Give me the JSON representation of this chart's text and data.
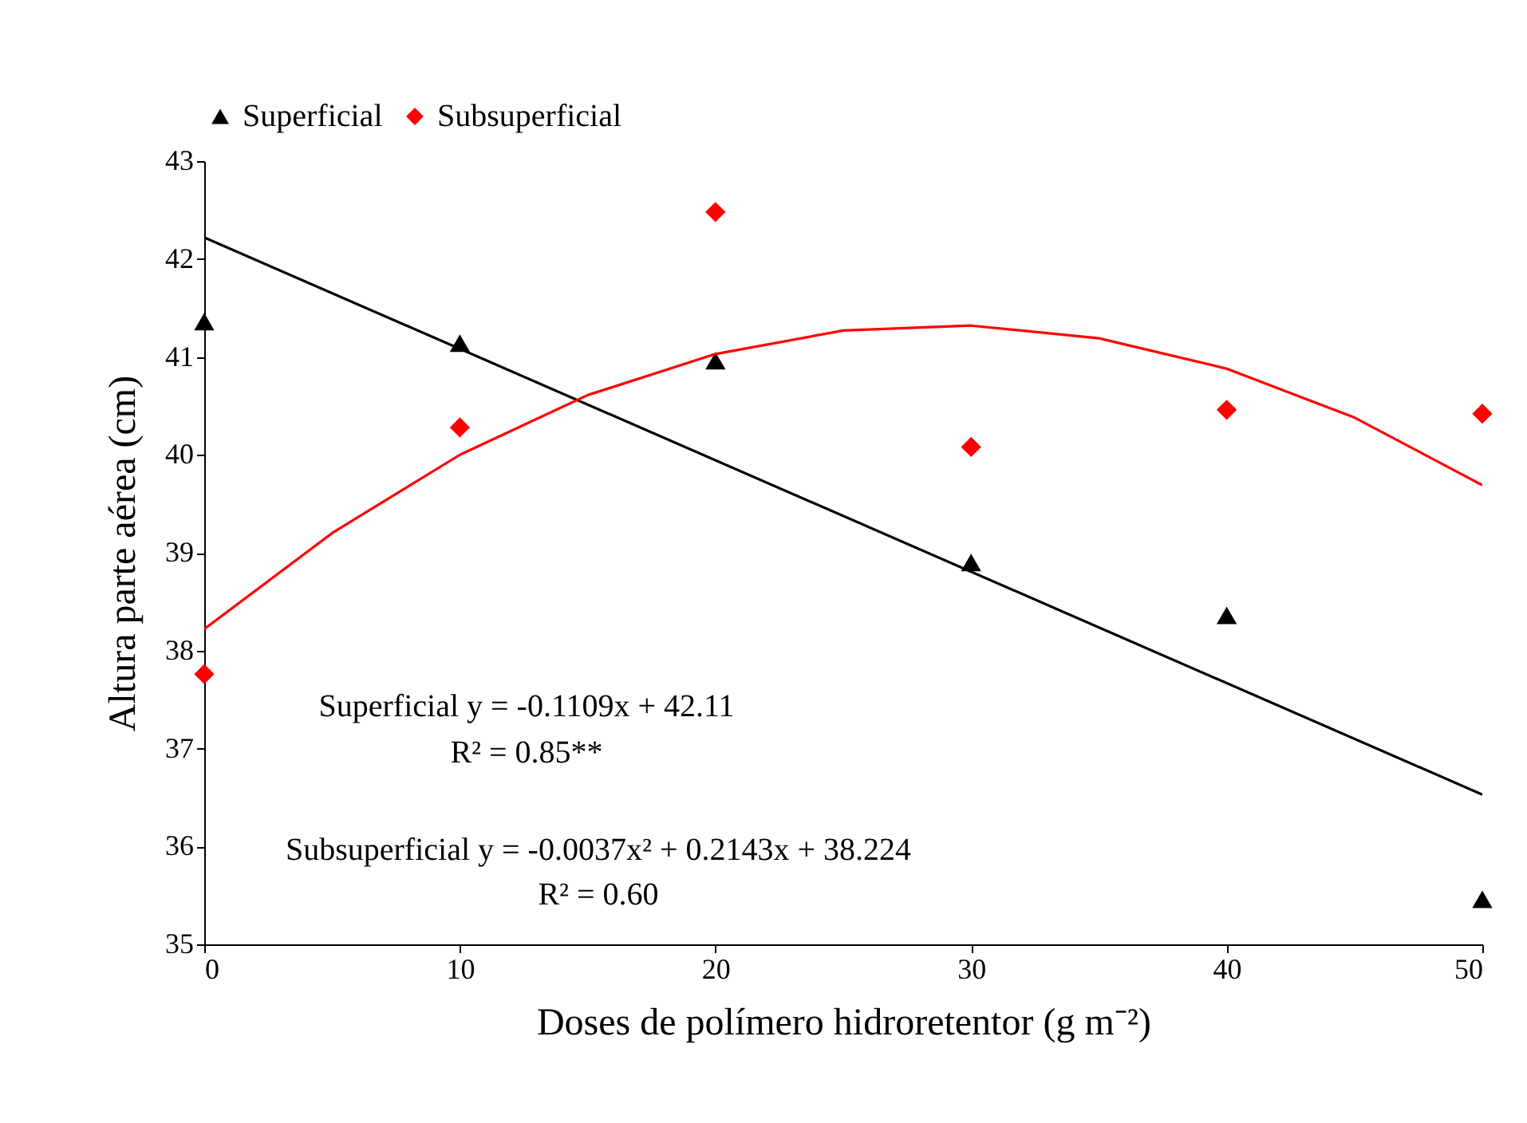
{
  "chart_data": {
    "type": "scatter",
    "xlabel": "Doses de polímero hidroretentor (g m⁻²)",
    "ylabel": "Altura parte aérea (cm)",
    "x": [
      0,
      10,
      20,
      30,
      40,
      50
    ],
    "series": [
      {
        "name": "Superficial",
        "color": "#000000",
        "marker": "triangle",
        "values": [
          41.36,
          41.14,
          40.96,
          38.9,
          38.36,
          35.46
        ]
      },
      {
        "name": "Subsuperficial",
        "color": "#ff0000",
        "marker": "diamond",
        "values": [
          37.76,
          40.28,
          42.48,
          40.08,
          40.46,
          40.42
        ]
      },
      {
        "type": "line",
        "color": "#000000",
        "x": [
          0,
          50
        ],
        "values": [
          42.22,
          36.53
        ]
      },
      {
        "type": "line",
        "color": "#ff0000",
        "x": [
          0,
          5,
          10,
          15,
          20,
          25,
          30,
          35,
          40,
          45,
          50
        ],
        "values": [
          38.22,
          39.2,
          40.0,
          40.61,
          41.03,
          41.27,
          41.32,
          41.19,
          40.88,
          40.38,
          39.69
        ]
      }
    ],
    "xlim": [
      0,
      50
    ],
    "xticks": [
      0,
      10,
      20,
      30,
      40,
      50
    ],
    "ylim": [
      35,
      43
    ],
    "yticks": [
      35,
      36,
      37,
      38,
      39,
      40,
      41,
      42,
      43
    ],
    "grid": false,
    "legend": "top",
    "annotations": [
      "Superficial y = -0.1109x + 42.11",
      "R² = 0.85**",
      "Subsuperficial y = -0.0037x² + 0.2143x + 38.224",
      "R² = 0.60"
    ]
  }
}
